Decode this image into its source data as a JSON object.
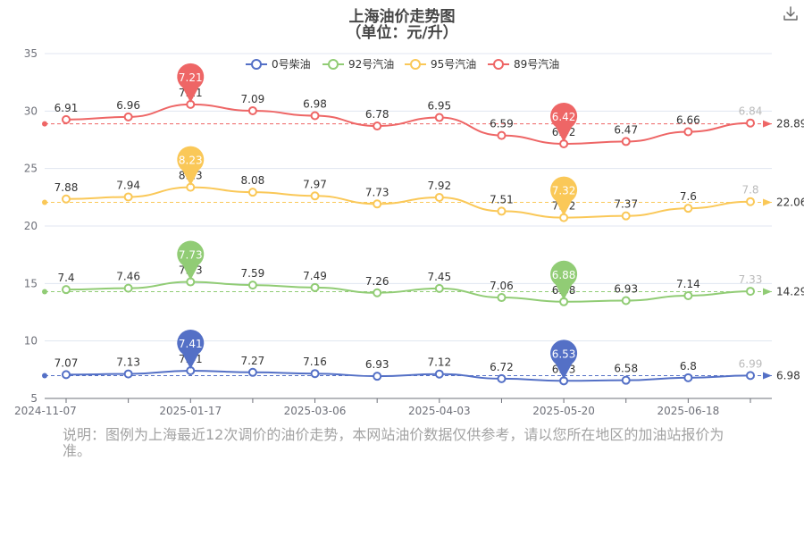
{
  "title_line1": "上海油价走势图",
  "title_line2": "（单位：元/升）",
  "footnote": "说明：图例为上海最近12次调价的油价走势，本网站油价数据仅供参考，请以您所在地区的加油站报价为准。",
  "toolbox": {
    "download_icon": "download-icon"
  },
  "chart_data": {
    "type": "line",
    "smooth": true,
    "y_axis": {
      "min": 5,
      "max": 35,
      "ticks": [
        5,
        10,
        15,
        20,
        25,
        30,
        35
      ]
    },
    "x_axis_labels": [
      "2024-11-07",
      "2025-01-17",
      "2025-03-06",
      "2025-04-03",
      "2025-05-20",
      "2025-06-18"
    ],
    "x_axis_label_positions": [
      0,
      2,
      4,
      6,
      8,
      10
    ],
    "grid": true,
    "legend_position": "top",
    "point_count": 12,
    "series": [
      {
        "name": "0号柴油",
        "color": "#5470c6",
        "values": [
          7.07,
          7.13,
          7.41,
          7.27,
          7.16,
          6.93,
          7.12,
          6.72,
          6.53,
          6.58,
          6.8,
          6.99
        ],
        "cumulative": [
          7.07,
          7.13,
          7.41,
          7.27,
          7.16,
          6.93,
          7.12,
          6.72,
          6.53,
          6.58,
          6.8,
          6.99
        ],
        "markers": {
          "max": "7.41",
          "min": "6.53",
          "average": "6.98"
        }
      },
      {
        "name": "92号汽油",
        "color": "#91cc75",
        "values": [
          7.4,
          7.46,
          7.73,
          7.59,
          7.49,
          7.26,
          7.45,
          7.06,
          6.88,
          6.93,
          7.14,
          7.33
        ],
        "cumulative": [
          14.47,
          14.59,
          15.14,
          14.86,
          14.65,
          14.19,
          14.57,
          13.78,
          13.41,
          13.51,
          13.94,
          14.32
        ],
        "markers": {
          "max": "7.73",
          "min": "6.88",
          "average": "14.29"
        }
      },
      {
        "name": "95号汽油",
        "color": "#fac858",
        "values": [
          7.88,
          7.94,
          8.23,
          8.08,
          7.97,
          7.73,
          7.92,
          7.51,
          7.32,
          7.37,
          7.6,
          7.8
        ],
        "cumulative": [
          22.35,
          22.53,
          23.37,
          22.94,
          22.62,
          21.92,
          22.49,
          21.29,
          20.73,
          20.88,
          21.54,
          22.12
        ],
        "markers": {
          "max": "8.23",
          "min": "7.32",
          "average": "22.06"
        }
      },
      {
        "name": "89号汽油",
        "color": "#ee6666",
        "values": [
          6.91,
          6.96,
          7.21,
          7.09,
          6.98,
          6.78,
          6.95,
          6.59,
          6.42,
          6.47,
          6.66,
          6.84
        ],
        "cumulative": [
          29.26,
          29.49,
          30.58,
          30.03,
          29.6,
          28.7,
          29.44,
          27.88,
          27.15,
          27.35,
          28.2,
          28.96
        ],
        "markers": {
          "max": "7.21",
          "min": "6.42",
          "average": "28.89"
        }
      }
    ]
  }
}
